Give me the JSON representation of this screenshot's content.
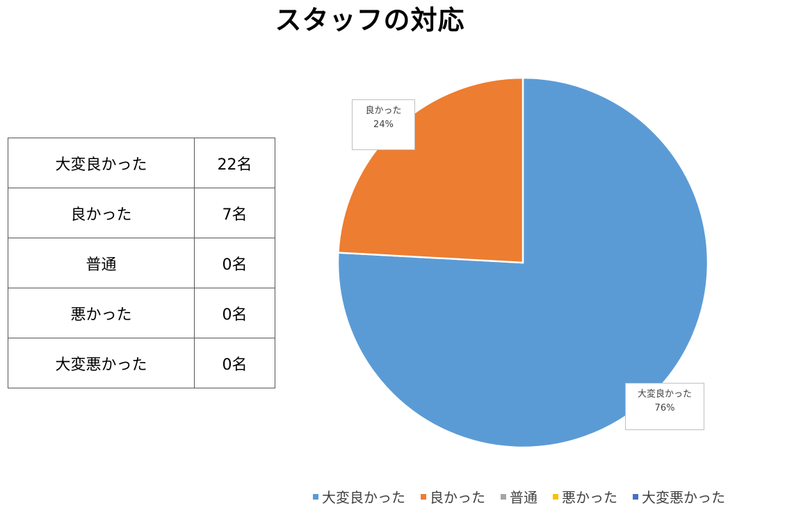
{
  "title": "スタッフの対応",
  "table": {
    "rows": [
      {
        "label": "大変良かった",
        "value": "22名"
      },
      {
        "label": "良かった",
        "value": "7名"
      },
      {
        "label": "普通",
        "value": "0名"
      },
      {
        "label": "悪かった",
        "value": "0名"
      },
      {
        "label": "大変悪かった",
        "value": "0名"
      }
    ]
  },
  "data_labels": {
    "good": {
      "name": "良かった",
      "percent": "24%"
    },
    "very_good": {
      "name": "大変良かった",
      "percent": "76%"
    }
  },
  "legend": {
    "items": [
      {
        "label": "大変良かった",
        "color": "#5B9BD5"
      },
      {
        "label": "良かった",
        "color": "#ED7D31"
      },
      {
        "label": "普通",
        "color": "#A5A5A5"
      },
      {
        "label": "悪かった",
        "color": "#FFC000"
      },
      {
        "label": "大変悪かった",
        "color": "#4472C4"
      }
    ]
  },
  "chart_data": {
    "type": "pie",
    "title": "スタッフの対応",
    "categories": [
      "大変良かった",
      "良かった",
      "普通",
      "悪かった",
      "大変悪かった"
    ],
    "values": [
      22,
      7,
      0,
      0,
      0
    ],
    "percentages": [
      76,
      24,
      0,
      0,
      0
    ],
    "unit": "名",
    "colors": [
      "#5B9BD5",
      "#ED7D31",
      "#A5A5A5",
      "#FFC000",
      "#4472C4"
    ],
    "data_labels": [
      "大変良かった 76%",
      "良かった 24%"
    ],
    "legend_position": "bottom"
  }
}
